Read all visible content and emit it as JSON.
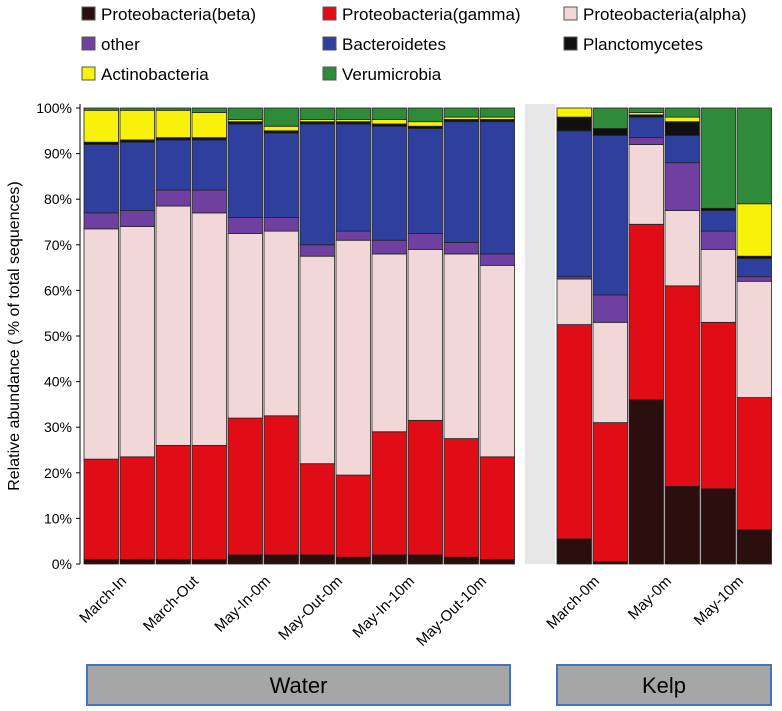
{
  "chart_data": {
    "type": "bar",
    "stacked": true,
    "ylabel": "Relative abundance ( % of total sequences)",
    "ylim": [
      0,
      100
    ],
    "yticks": [
      "0%",
      "10%",
      "20%",
      "30%",
      "40%",
      "50%",
      "60%",
      "70%",
      "80%",
      "90%",
      "100%"
    ],
    "legend": {
      "placement": "top",
      "columns": 3
    },
    "colors": {
      "beta": "#2b0f0f",
      "gamma": "#e00d16",
      "alpha": "#f2d7d8",
      "other": "#7040a0",
      "bacteroidetes": "#2e3f9e",
      "planctomycetes": "#101010",
      "actinobacteria": "#f8f20a",
      "verrucomicrobia": "#2f8a3a"
    },
    "series_order": [
      "beta",
      "gamma",
      "alpha",
      "other",
      "bacteroidetes",
      "planctomycetes",
      "actinobacteria",
      "verrucomicrobia"
    ],
    "legend_entries": [
      {
        "key": "beta",
        "label": "Proteobacteria(beta)"
      },
      {
        "key": "gamma",
        "label": "Proteobacteria(gamma)"
      },
      {
        "key": "alpha",
        "label": "Proteobacteria(alpha)"
      },
      {
        "key": "other",
        "label": "other"
      },
      {
        "key": "bacteroidetes",
        "label": "Bacteroidetes"
      },
      {
        "key": "planctomycetes",
        "label": "Planctomycetes"
      },
      {
        "key": "actinobacteria",
        "label": "Actinobacteria"
      },
      {
        "key": "verrucomicrobia",
        "label": "Verumicrobia"
      }
    ],
    "groups": [
      {
        "name": "Water",
        "categories": [
          "March-In",
          "March-Out",
          "May-In-0m",
          "May-Out-0m",
          "May-In-10m",
          "May-Out-10m"
        ],
        "bars": [
          {
            "beta": 1,
            "gamma": 22,
            "alpha": 50.5,
            "other": 3.5,
            "bacteroidetes": 15,
            "planctomycetes": 0.5,
            "actinobacteria": 7,
            "verrucomicrobia": 0.5
          },
          {
            "beta": 1,
            "gamma": 22.5,
            "alpha": 50.5,
            "other": 3.5,
            "bacteroidetes": 15,
            "planctomycetes": 0.5,
            "actinobacteria": 6.5,
            "verrucomicrobia": 0.5
          },
          {
            "beta": 1,
            "gamma": 25,
            "alpha": 52.5,
            "other": 3.5,
            "bacteroidetes": 11,
            "planctomycetes": 0.5,
            "actinobacteria": 6,
            "verrucomicrobia": 0.5
          },
          {
            "beta": 1,
            "gamma": 25,
            "alpha": 51,
            "other": 5,
            "bacteroidetes": 11,
            "planctomycetes": 0.5,
            "actinobacteria": 5.5,
            "verrucomicrobia": 1
          },
          {
            "beta": 2,
            "gamma": 30,
            "alpha": 40.5,
            "other": 3.5,
            "bacteroidetes": 20.5,
            "planctomycetes": 0.5,
            "actinobacteria": 0.5,
            "verrucomicrobia": 2.5
          },
          {
            "beta": 2,
            "gamma": 30.5,
            "alpha": 40.5,
            "other": 3,
            "bacteroidetes": 18.5,
            "planctomycetes": 0.5,
            "actinobacteria": 1,
            "verrucomicrobia": 4
          },
          {
            "beta": 2,
            "gamma": 20,
            "alpha": 45.5,
            "other": 2.5,
            "bacteroidetes": 26.5,
            "planctomycetes": 0.5,
            "actinobacteria": 0.5,
            "verrucomicrobia": 2.5
          },
          {
            "beta": 1.5,
            "gamma": 18,
            "alpha": 51.5,
            "other": 2,
            "bacteroidetes": 23.5,
            "planctomycetes": 0.5,
            "actinobacteria": 0.5,
            "verrucomicrobia": 2.5
          },
          {
            "beta": 2,
            "gamma": 27,
            "alpha": 39,
            "other": 3,
            "bacteroidetes": 25,
            "planctomycetes": 0.5,
            "actinobacteria": 1,
            "verrucomicrobia": 2.5
          },
          {
            "beta": 2,
            "gamma": 29.5,
            "alpha": 37.5,
            "other": 3.5,
            "bacteroidetes": 23,
            "planctomycetes": 0.5,
            "actinobacteria": 1,
            "verrucomicrobia": 3
          },
          {
            "beta": 1.5,
            "gamma": 26,
            "alpha": 40.5,
            "other": 2.5,
            "bacteroidetes": 26.5,
            "planctomycetes": 0.5,
            "actinobacteria": 0.5,
            "verrucomicrobia": 2
          },
          {
            "beta": 1,
            "gamma": 22.5,
            "alpha": 42,
            "other": 2.5,
            "bacteroidetes": 29,
            "planctomycetes": 0.5,
            "actinobacteria": 0.5,
            "verrucomicrobia": 2
          }
        ]
      },
      {
        "name": "Kelp",
        "categories": [
          "March-0m",
          "May-0m",
          "May-10m"
        ],
        "bars": [
          {
            "beta": 5.5,
            "gamma": 47,
            "alpha": 10,
            "other": 0.5,
            "bacteroidetes": 32,
            "planctomycetes": 3,
            "actinobacteria": 2,
            "verrucomicrobia": 0
          },
          {
            "beta": 0.5,
            "gamma": 30.5,
            "alpha": 22,
            "other": 6,
            "bacteroidetes": 35,
            "planctomycetes": 1.5,
            "actinobacteria": 0,
            "verrucomicrobia": 4.5
          },
          {
            "beta": 36,
            "gamma": 38.5,
            "alpha": 17.5,
            "other": 1.5,
            "bacteroidetes": 4.5,
            "planctomycetes": 0.5,
            "actinobacteria": 0.5,
            "verrucomicrobia": 1
          },
          {
            "beta": 17,
            "gamma": 44,
            "alpha": 16.5,
            "other": 10.5,
            "bacteroidetes": 6,
            "planctomycetes": 3,
            "actinobacteria": 1,
            "verrucomicrobia": 2
          },
          {
            "beta": 16.5,
            "gamma": 36.5,
            "alpha": 16,
            "other": 4,
            "bacteroidetes": 4.5,
            "planctomycetes": 0.5,
            "actinobacteria": 0,
            "verrucomicrobia": 22
          },
          {
            "beta": 7.5,
            "gamma": 29,
            "alpha": 25.5,
            "other": 1,
            "bacteroidetes": 4,
            "planctomycetes": 0.5,
            "actinobacteria": 11.5,
            "verrucomicrobia": 21
          }
        ]
      }
    ]
  }
}
